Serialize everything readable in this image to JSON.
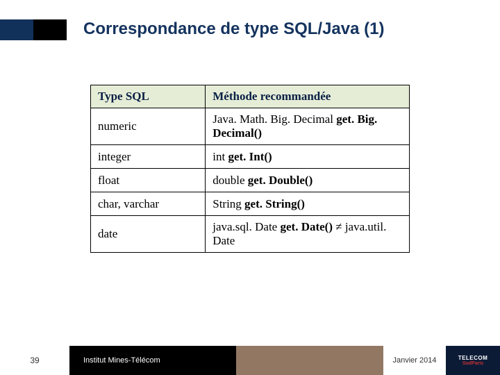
{
  "title": "Correspondance de type SQL/Java (1)",
  "table": {
    "headers": {
      "sql": "Type SQL",
      "method": "Méthode recommandée"
    },
    "rows": [
      {
        "sql": "numeric",
        "method_plain": "Java. Math. Big. Decimal ",
        "method_bold": "get. Big. Decimal()"
      },
      {
        "sql": "integer",
        "method_plain": "int ",
        "method_bold": "get. Int()"
      },
      {
        "sql": "float",
        "method_plain": "double ",
        "method_bold": "get. Double()"
      },
      {
        "sql": "char, varchar",
        "method_plain": "String ",
        "method_bold": "get. String()"
      },
      {
        "sql": "date",
        "method_plain": "java.sql. Date ",
        "method_bold": "get. Date()",
        "method_tail": " ≠ java.util. Date"
      }
    ]
  },
  "footer": {
    "page": "39",
    "org": "Institut Mines-Télécom",
    "date": "Janvier 2014",
    "logo_top": "TELECOM",
    "logo_bottom": "SudParis"
  },
  "colors": {
    "title": "#14335e",
    "accent_navy": "#12315a",
    "table_header_bg": "#e5edd7",
    "footer_brown": "#927863",
    "logo_bg": "#0b1b36",
    "logo_red": "#c43131"
  }
}
